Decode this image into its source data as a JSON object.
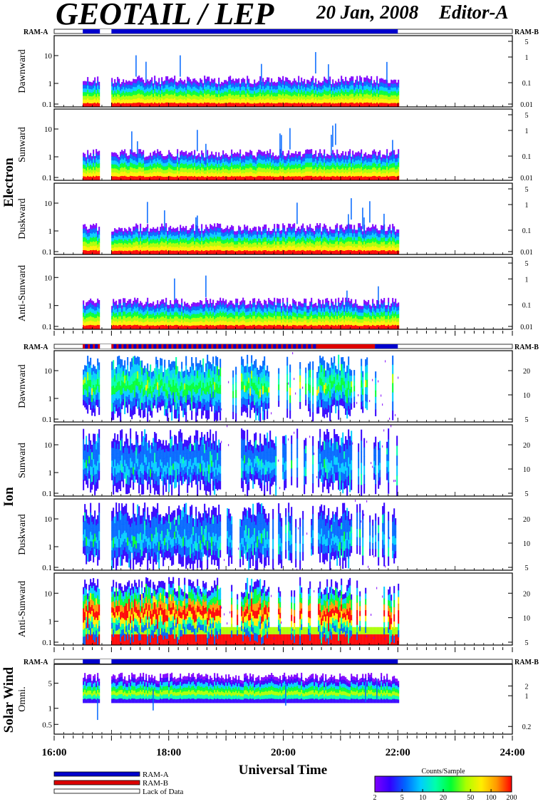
{
  "title": "GEOTAIL / LEP",
  "date": "20 Jan, 2008",
  "editor": "Editor-A",
  "ram_a_label": "RAM-A",
  "ram_b_label": "RAM-B",
  "colors": {
    "ram_a": "#0000cc",
    "ram_b": "#dd0000",
    "lack": "#ffffff",
    "colormap": [
      "#7f00ff",
      "#3300ff",
      "#0066ff",
      "#00ccff",
      "#00ffaa",
      "#00ff33",
      "#aaff00",
      "#ffee00",
      "#ff9900",
      "#ff0000"
    ]
  },
  "chart_data": {
    "type": "heatmap",
    "xlabel": "Universal Time",
    "x_range_hours": [
      16,
      24
    ],
    "x_tick_labels": [
      "16:00",
      "18:00",
      "20:00",
      "22:00",
      "24:00"
    ],
    "data_interval_hours": [
      16.5,
      22.0
    ],
    "groups": [
      {
        "name": "Electron",
        "ram_bar": [
          {
            "start": 16.5,
            "end": 16.8,
            "mode": "RAM-A"
          },
          {
            "start": 16.8,
            "end": 17.0,
            "mode": "Lack of Data"
          },
          {
            "start": 17.0,
            "end": 22.0,
            "mode": "RAM-A"
          }
        ],
        "left_ticks": [
          "10",
          "1",
          "0.1"
        ],
        "right_ticks": [
          "5",
          "1",
          "0.1",
          "0.01"
        ],
        "panels": [
          "Dawnward",
          "Sunward",
          "Duskward",
          "Anti-Sunward"
        ]
      },
      {
        "name": "Ion",
        "ram_bar": [
          {
            "start": 16.5,
            "end": 16.8,
            "mode": "RAM-A/B"
          },
          {
            "start": 16.8,
            "end": 17.0,
            "mode": "Lack of Data"
          },
          {
            "start": 17.0,
            "end": 20.6,
            "mode": "RAM-A/B"
          },
          {
            "start": 20.6,
            "end": 21.6,
            "mode": "RAM-B"
          },
          {
            "start": 21.6,
            "end": 22.0,
            "mode": "RAM-A"
          }
        ],
        "left_ticks": [
          "10",
          "1",
          "0.1"
        ],
        "right_ticks": [
          "20",
          "10",
          "5"
        ],
        "panels": [
          "Dawnward",
          "Sunward",
          "Duskward",
          "Anti-Sunward"
        ]
      },
      {
        "name": "Solar Wind",
        "ram_bar": [
          {
            "start": 16.5,
            "end": 16.8,
            "mode": "RAM-A"
          },
          {
            "start": 16.8,
            "end": 17.0,
            "mode": "Lack of Data"
          },
          {
            "start": 17.0,
            "end": 22.0,
            "mode": "RAM-A"
          }
        ],
        "left_ticks": [
          "5",
          "1",
          "0.5"
        ],
        "right_ticks": [
          "2",
          "1",
          "0.2"
        ],
        "panels": [
          "Omni."
        ]
      }
    ],
    "legend": [
      "RAM-A",
      "RAM-B",
      "Lack of Data"
    ],
    "colorbar": {
      "label": "Counts/Sample",
      "ticks": [
        "2",
        "5",
        "10",
        "20",
        "50",
        "100",
        "200"
      ],
      "range": [
        2,
        200
      ],
      "scale": "log"
    }
  }
}
